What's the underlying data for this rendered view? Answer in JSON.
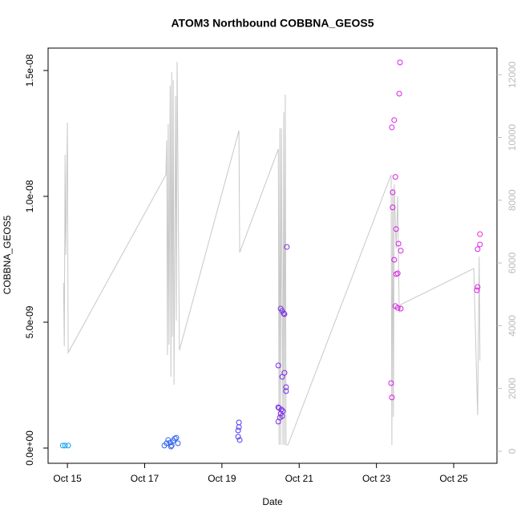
{
  "chart_data": {
    "type": "scatter",
    "title": "ATOM3 Northbound COBBNA_GEOS5",
    "x_label": "Date",
    "y_label": "COBBNA_GEOS5",
    "xlim": [
      14.5,
      26.12
    ],
    "ylim": [
      -6.05e-10,
      1.589e-08
    ],
    "y2lim": [
      -383,
      12848
    ],
    "xticks": [
      {
        "value": 15,
        "label": "Oct 15"
      },
      {
        "value": 17,
        "label": "Oct 17"
      },
      {
        "value": 19,
        "label": "Oct 19"
      },
      {
        "value": 21,
        "label": "Oct 21"
      },
      {
        "value": 23,
        "label": "Oct 23"
      },
      {
        "value": 25,
        "label": "Oct 25"
      }
    ],
    "yticks": [
      {
        "value": 0,
        "label": "0.0e+00"
      },
      {
        "value": 5e-09,
        "label": "5.0e-09"
      },
      {
        "value": 1e-08,
        "label": "1.0e-08"
      },
      {
        "value": 1.5e-08,
        "label": "1.5e-08"
      }
    ],
    "y2ticks": [
      0,
      2000,
      4000,
      6000,
      8000,
      10000,
      12000
    ],
    "y2_color": "#bbbbbb",
    "series": [
      {
        "type": "line",
        "axis": "y2",
        "color": "#c8c8c8",
        "x": [
          14.9,
          14.92,
          14.94,
          14.96,
          15.0,
          15.02,
          17.55,
          17.57,
          17.59,
          17.61,
          17.63,
          17.66,
          17.68,
          17.7,
          17.72,
          17.74,
          17.76,
          17.8,
          17.82,
          17.84,
          17.9,
          19.44,
          19.46,
          20.46,
          20.48,
          20.5,
          20.52,
          20.54,
          20.58,
          20.6,
          20.62,
          20.64,
          20.66,
          20.71,
          23.38,
          23.4,
          23.42,
          23.44,
          23.46,
          23.51,
          23.55,
          23.59,
          23.63,
          25.52,
          25.62,
          25.66,
          25.68
        ],
        "values": [
          5363,
          3346,
          9450,
          6257,
          10471,
          3141,
          8811,
          9910,
          3065,
          10420,
          3397,
          11646,
          2375,
          12080,
          3653,
          11825,
          2120,
          11314,
          4163,
          12412,
          3218,
          10216,
          6334,
          9629,
          204,
          10292,
          204,
          10292,
          204,
          10803,
          204,
          11365,
          204,
          204,
          8811,
          204,
          8377,
          1098,
          8505,
          6462,
          8122,
          4418,
          4674,
          5823,
          1149,
          6206,
          2886
        ]
      },
      {
        "type": "scatter",
        "color": "#1ea0f0",
        "x": [
          14.88,
          14.94,
          15.02
        ],
        "values": [
          1e-10,
          1e-10,
          1e-10
        ]
      },
      {
        "type": "scatter",
        "color": "#2f63ee",
        "x": [
          17.51,
          17.57,
          17.61,
          17.66,
          17.7,
          17.74,
          17.78,
          17.82,
          17.86,
          17.68
        ],
        "values": [
          1e-10,
          1.9e-10,
          3.2e-10,
          2.2e-10,
          1e-10,
          2.9e-10,
          3.8e-10,
          4.1e-10,
          1.9e-10,
          6e-11
        ]
      },
      {
        "type": "scatter",
        "color": "#4a3cf0",
        "x": [
          19.44,
          19.44,
          19.42,
          19.42,
          19.46
        ],
        "values": [
          1.02e-09,
          8.3e-10,
          7e-10,
          4.5e-10,
          3.2e-10
        ]
      },
      {
        "type": "scatter",
        "color": "#7a2ee4",
        "x": [
          20.46,
          20.46,
          20.46,
          20.52,
          20.56,
          20.6,
          20.62,
          20.68,
          20.56,
          20.62,
          20.66,
          20.66,
          20.48,
          20.54,
          20.58,
          20.52,
          20.56,
          20.5
        ],
        "values": [
          3.28e-09,
          1.62e-09,
          1.05e-09,
          5.54e-09,
          5.45e-09,
          5.35e-09,
          5.32e-09,
          7.99e-09,
          2.83e-09,
          2.99e-09,
          2.42e-09,
          2.26e-09,
          1.59e-09,
          1.53e-09,
          1.47e-09,
          1.37e-09,
          1.27e-09,
          1.21e-09
        ]
      },
      {
        "type": "scatter",
        "color": "#d81ee6",
        "x": [
          23.61,
          23.59,
          23.46,
          23.4,
          23.49,
          23.42,
          23.42,
          23.51,
          23.57,
          23.46,
          23.55,
          23.51,
          23.63,
          23.49,
          23.55,
          23.63,
          23.38,
          23.4
        ],
        "values": [
          1.532e-08,
          1.408e-08,
          1.303e-08,
          1.274e-08,
          1.077e-08,
          1.016e-08,
          9.56e-09,
          8.7e-09,
          8.12e-09,
          7.48e-09,
          6.94e-09,
          6.91e-09,
          7.84e-09,
          5.64e-09,
          5.57e-09,
          5.54e-09,
          2.58e-09,
          2.01e-09
        ]
      },
      {
        "type": "scatter",
        "color": "#e020e0",
        "x": [
          25.68,
          25.68,
          25.62,
          25.62,
          25.6
        ],
        "values": [
          8.5e-09,
          8.09e-09,
          7.9e-09,
          6.4e-09,
          6.27e-09
        ]
      }
    ]
  }
}
